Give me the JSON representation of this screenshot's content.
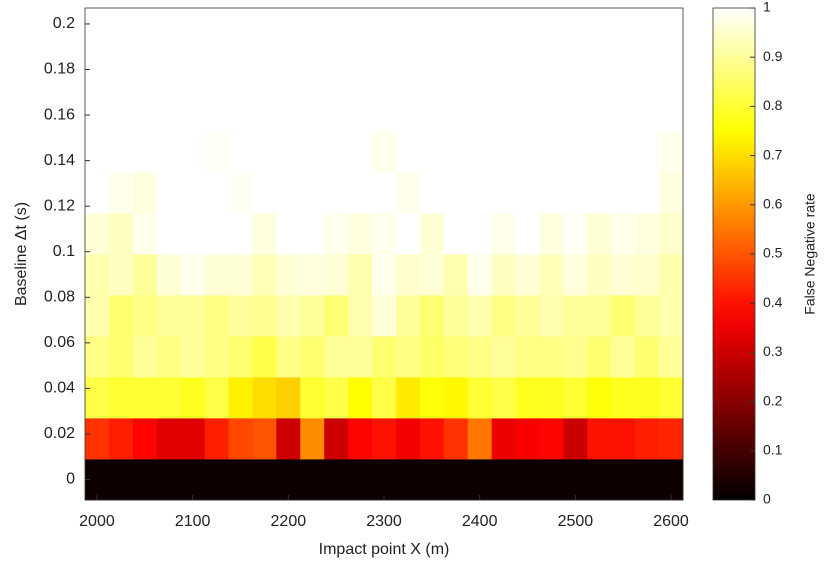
{
  "chart_data": {
    "type": "heatmap",
    "x_label": "Impact point X (m)",
    "y_label": "Baseline Δt (s)",
    "colorbar_label": "False Negative rate",
    "colormap": "hot",
    "clim": [
      0,
      1
    ],
    "x": [
      2000,
      2025,
      2050,
      2075,
      2100,
      2125,
      2150,
      2175,
      2200,
      2225,
      2250,
      2275,
      2300,
      2325,
      2350,
      2375,
      2400,
      2425,
      2450,
      2475,
      2500,
      2525,
      2550,
      2575,
      2600
    ],
    "y": [
      0,
      0.018,
      0.036,
      0.054,
      0.072,
      0.09,
      0.108,
      0.126,
      0.144,
      0.162,
      0.18,
      0.198
    ],
    "values": [
      [
        0.02,
        0.02,
        0.02,
        0.02,
        0.02,
        0.02,
        0.02,
        0.02,
        0.02,
        0.02,
        0.02,
        0.02,
        0.02,
        0.02,
        0.02,
        0.02,
        0.02,
        0.02,
        0.02,
        0.02,
        0.02,
        0.02,
        0.02,
        0.02,
        0.02
      ],
      [
        0.45,
        0.42,
        0.38,
        0.33,
        0.33,
        0.42,
        0.48,
        0.5,
        0.3,
        0.58,
        0.3,
        0.38,
        0.4,
        0.36,
        0.4,
        0.45,
        0.55,
        0.35,
        0.37,
        0.38,
        0.3,
        0.4,
        0.4,
        0.42,
        0.43
      ],
      [
        0.82,
        0.8,
        0.8,
        0.8,
        0.78,
        0.82,
        0.73,
        0.7,
        0.68,
        0.8,
        0.82,
        0.75,
        0.82,
        0.72,
        0.76,
        0.74,
        0.8,
        0.82,
        0.78,
        0.78,
        0.8,
        0.76,
        0.78,
        0.78,
        0.8
      ],
      [
        0.88,
        0.86,
        0.9,
        0.88,
        0.9,
        0.88,
        0.86,
        0.82,
        0.88,
        0.86,
        0.9,
        0.9,
        0.86,
        0.88,
        0.85,
        0.87,
        0.88,
        0.9,
        0.88,
        0.88,
        0.89,
        0.86,
        0.9,
        0.86,
        0.9
      ],
      [
        0.92,
        0.86,
        0.88,
        0.9,
        0.9,
        0.88,
        0.9,
        0.89,
        0.92,
        0.9,
        0.86,
        0.92,
        0.96,
        0.9,
        0.86,
        0.9,
        0.92,
        0.88,
        0.9,
        0.92,
        0.9,
        0.9,
        0.86,
        0.9,
        0.92
      ],
      [
        0.92,
        0.94,
        0.9,
        0.96,
        0.98,
        0.96,
        0.96,
        0.93,
        0.96,
        0.97,
        0.96,
        0.92,
        0.98,
        0.95,
        0.96,
        0.92,
        0.98,
        0.94,
        0.96,
        0.93,
        0.97,
        0.94,
        0.96,
        0.95,
        0.92
      ],
      [
        0.96,
        0.94,
        0.98,
        1,
        1,
        1,
        1,
        0.97,
        1,
        1,
        0.98,
        0.97,
        0.98,
        1,
        0.96,
        1,
        1,
        0.98,
        1,
        0.97,
        0.99,
        0.96,
        0.98,
        0.97,
        0.95
      ],
      [
        1,
        0.98,
        0.97,
        1,
        1,
        1,
        0.99,
        1,
        1,
        1,
        1,
        1,
        1,
        0.98,
        1,
        1,
        1,
        1,
        1,
        1,
        1,
        1,
        1,
        1,
        0.97
      ],
      [
        1,
        1,
        1,
        1,
        1,
        0.99,
        1,
        1,
        1,
        1,
        1,
        1,
        0.98,
        1,
        1,
        1,
        1,
        1,
        1,
        1,
        1,
        1,
        1,
        1,
        0.98
      ],
      [
        1,
        1,
        1,
        1,
        1,
        1,
        1,
        1,
        1,
        1,
        1,
        1,
        1,
        1,
        1,
        1,
        1,
        1,
        1,
        1,
        1,
        1,
        1,
        1,
        1
      ],
      [
        1,
        1,
        1,
        1,
        1,
        1,
        1,
        1,
        1,
        1,
        1,
        1,
        1,
        1,
        1,
        1,
        1,
        1,
        1,
        1,
        1,
        1,
        1,
        1,
        1
      ],
      [
        1,
        1,
        1,
        1,
        1,
        1,
        1,
        1,
        1,
        1,
        1,
        1,
        1,
        1,
        1,
        1,
        1,
        1,
        1,
        1,
        1,
        1,
        1,
        1,
        1
      ]
    ],
    "xlim": [
      1987.5,
      2612.5
    ],
    "ylim": [
      -0.009,
      0.207
    ],
    "xticks": [
      2000,
      2100,
      2200,
      2300,
      2400,
      2500,
      2600
    ],
    "yticks": [
      0,
      0.02,
      0.04,
      0.06,
      0.08,
      0.1,
      0.12,
      0.14,
      0.16,
      0.18,
      0.2
    ],
    "cticks": [
      0,
      0.1,
      0.2,
      0.3,
      0.4,
      0.5,
      0.6,
      0.7,
      0.8,
      0.9,
      1
    ]
  }
}
